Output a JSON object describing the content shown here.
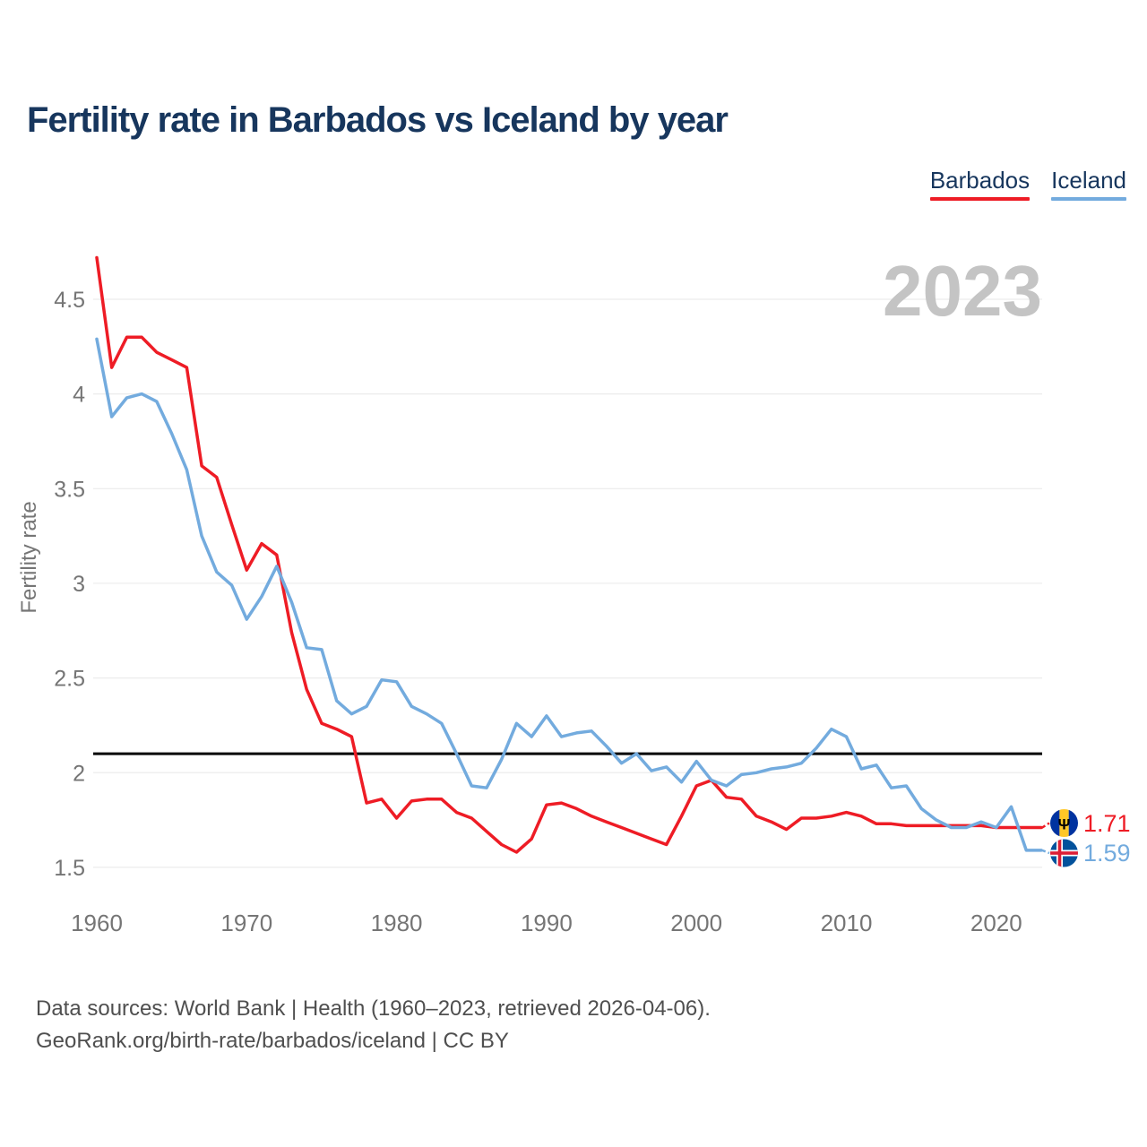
{
  "header": {
    "title": "Fertility rate in Barbados vs Iceland by year"
  },
  "legend": {
    "items": [
      {
        "label": "Barbados",
        "color": "#ee1c25"
      },
      {
        "label": "Iceland",
        "color": "#73abde"
      }
    ]
  },
  "chart_data": {
    "type": "line",
    "title": "Fertility rate in Barbados vs Iceland by year",
    "xlabel": "",
    "ylabel": "Fertility rate",
    "watermark": "2023",
    "grid": "horizontal",
    "legend_position": "top-right",
    "x_range": [
      1960,
      2023
    ],
    "ylim": [
      1.45,
      4.75
    ],
    "x_ticks": [
      {
        "label": "1960",
        "value": 1960
      },
      {
        "label": "1970",
        "value": 1970
      },
      {
        "label": "1980",
        "value": 1980
      },
      {
        "label": "1990",
        "value": 1990
      },
      {
        "label": "2000",
        "value": 2000
      },
      {
        "label": "2010",
        "value": 2010
      },
      {
        "label": "2020",
        "value": 2020
      }
    ],
    "y_ticks": [
      {
        "label": "4.5",
        "value": 4.5
      },
      {
        "label": "4",
        "value": 4.0
      },
      {
        "label": "3.5",
        "value": 3.5
      },
      {
        "label": "3",
        "value": 3.0
      },
      {
        "label": "2.5",
        "value": 2.5
      },
      {
        "label": "2",
        "value": 2.0
      },
      {
        "label": "1.5",
        "value": 1.5
      }
    ],
    "reference_line": {
      "value": 2.1,
      "color": "#000000"
    },
    "years": [
      1960,
      1961,
      1962,
      1963,
      1964,
      1965,
      1966,
      1967,
      1968,
      1969,
      1970,
      1971,
      1972,
      1973,
      1974,
      1975,
      1976,
      1977,
      1978,
      1979,
      1980,
      1981,
      1982,
      1983,
      1984,
      1985,
      1986,
      1987,
      1988,
      1989,
      1990,
      1991,
      1992,
      1993,
      1994,
      1995,
      1996,
      1997,
      1998,
      1999,
      2000,
      2001,
      2002,
      2003,
      2004,
      2005,
      2006,
      2007,
      2008,
      2009,
      2010,
      2011,
      2012,
      2013,
      2014,
      2015,
      2016,
      2017,
      2018,
      2019,
      2020,
      2021,
      2022,
      2023
    ],
    "series": [
      {
        "name": "Barbados",
        "color": "#ee1c25",
        "end_label": "1.71",
        "values": [
          4.72,
          4.14,
          4.3,
          4.3,
          4.22,
          4.18,
          4.14,
          3.62,
          3.56,
          3.31,
          3.07,
          3.21,
          3.15,
          2.74,
          2.44,
          2.26,
          2.23,
          2.19,
          1.84,
          1.86,
          1.76,
          1.85,
          1.86,
          1.86,
          1.79,
          1.76,
          1.69,
          1.62,
          1.58,
          1.65,
          1.83,
          1.84,
          1.81,
          1.77,
          1.74,
          1.71,
          1.68,
          1.65,
          1.62,
          1.77,
          1.93,
          1.96,
          1.87,
          1.86,
          1.77,
          1.74,
          1.7,
          1.76,
          1.76,
          1.77,
          1.79,
          1.77,
          1.73,
          1.73,
          1.72,
          1.72,
          1.72,
          1.72,
          1.72,
          1.72,
          1.71,
          1.71,
          1.71,
          1.71
        ]
      },
      {
        "name": "Iceland",
        "color": "#73abde",
        "end_label": "1.59",
        "values": [
          4.29,
          3.88,
          3.98,
          4.0,
          3.96,
          3.79,
          3.6,
          3.25,
          3.06,
          2.99,
          2.81,
          2.93,
          3.09,
          2.9,
          2.66,
          2.65,
          2.38,
          2.31,
          2.35,
          2.49,
          2.48,
          2.35,
          2.31,
          2.26,
          2.1,
          1.93,
          1.92,
          2.07,
          2.26,
          2.19,
          2.3,
          2.19,
          2.21,
          2.22,
          2.14,
          2.05,
          2.1,
          2.01,
          2.03,
          1.95,
          2.06,
          1.96,
          1.93,
          1.99,
          2.0,
          2.02,
          2.03,
          2.05,
          2.13,
          2.23,
          2.19,
          2.02,
          2.04,
          1.92,
          1.93,
          1.81,
          1.75,
          1.71,
          1.71,
          1.74,
          1.71,
          1.82,
          1.59,
          1.59
        ]
      }
    ],
    "end_markers": [
      {
        "series": "Barbados",
        "flag": "barbados-flag",
        "value_label": "1.71"
      },
      {
        "series": "Iceland",
        "flag": "iceland-flag",
        "value_label": "1.59"
      }
    ]
  },
  "icons": {
    "barbados_trident_glyph": "Ψ"
  },
  "footer": {
    "line1": "Data sources: World Bank | Health (1960–2023, retrieved 2026-04-06).",
    "line2": "GeoRank.org/birth-rate/barbados/iceland | CC BY"
  },
  "colors": {
    "title_text": "#17365d",
    "axis_text": "#757575",
    "gridline": "#ececec",
    "watermark": "#c4c4c4",
    "footer_text": "#4f4f4f",
    "reference_line": "#000000",
    "barbados_flag_blue": "#0033a0",
    "barbados_flag_gold": "#ffc726",
    "iceland_flag_blue": "#02529c",
    "iceland_flag_red": "#dc1e35"
  }
}
